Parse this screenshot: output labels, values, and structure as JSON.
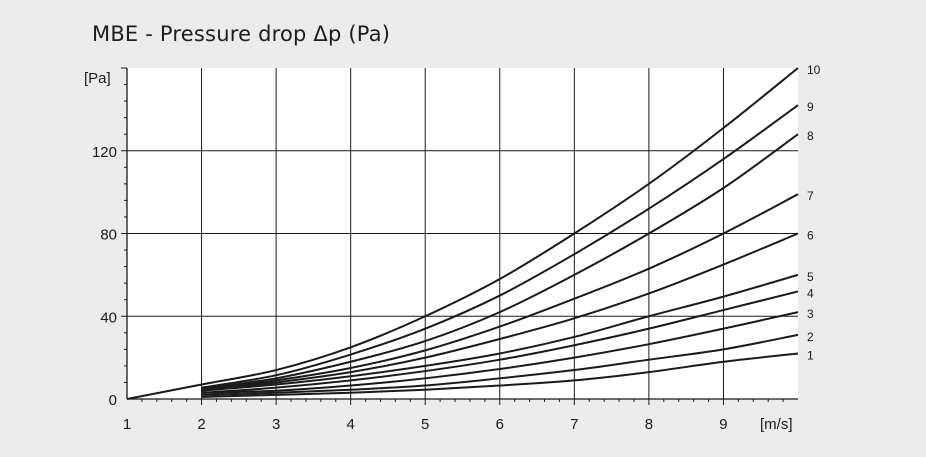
{
  "chart_data": {
    "type": "line",
    "title": "MBE - Pressure drop Δp (Pa)",
    "ylabel": "[Pa]",
    "xlabel": "[m/s]",
    "xlim": [
      1,
      10
    ],
    "ylim": [
      0,
      160
    ],
    "x_ticks": [
      "1",
      "2",
      "3",
      "4",
      "5",
      "6",
      "7",
      "8",
      "9"
    ],
    "y_ticks": [
      "0",
      "40",
      "80",
      "120"
    ],
    "y_tick_values": [
      0,
      40,
      80,
      120
    ],
    "x_tick_values": [
      1,
      2,
      3,
      4,
      5,
      6,
      7,
      8,
      9
    ],
    "grid": true,
    "series": [
      {
        "name": "1",
        "x": [
          2,
          3,
          4,
          5,
          6,
          7,
          8,
          9,
          10
        ],
        "y": [
          1,
          2,
          3,
          4.5,
          6.5,
          9,
          13,
          18,
          22
        ]
      },
      {
        "name": "2",
        "x": [
          2,
          3,
          4,
          5,
          6,
          7,
          8,
          9,
          10
        ],
        "y": [
          2,
          3,
          4.5,
          6.5,
          10,
          14,
          19,
          24,
          31
        ]
      },
      {
        "name": "3",
        "x": [
          2,
          3,
          4,
          5,
          6,
          7,
          8,
          9,
          10
        ],
        "y": [
          3,
          4,
          6.5,
          10,
          14.5,
          20,
          26.5,
          34,
          42
        ]
      },
      {
        "name": "4",
        "x": [
          2,
          3,
          4,
          5,
          6,
          7,
          8,
          9,
          10
        ],
        "y": [
          3,
          5.5,
          9,
          13.5,
          19,
          26,
          34,
          43,
          52
        ]
      },
      {
        "name": "5",
        "x": [
          2,
          3,
          4,
          5,
          6,
          7,
          8,
          9,
          10
        ],
        "y": [
          4,
          7,
          11,
          16,
          22,
          30,
          40,
          49.5,
          60
        ]
      },
      {
        "name": "6",
        "x": [
          2,
          3,
          4,
          5,
          6,
          7,
          8,
          9,
          10
        ],
        "y": [
          4,
          8,
          13,
          20,
          29,
          39,
          51,
          65,
          80
        ]
      },
      {
        "name": "7",
        "x": [
          2,
          3,
          4,
          5,
          6,
          7,
          8,
          9,
          10
        ],
        "y": [
          4.5,
          9,
          15,
          23.5,
          35,
          48.5,
          63,
          80,
          99
        ]
      },
      {
        "name": "8",
        "x": [
          2,
          3,
          4,
          5,
          6,
          7,
          8,
          9,
          10
        ],
        "y": [
          5,
          10,
          18,
          28,
          42,
          60,
          80,
          102,
          128
        ]
      },
      {
        "name": "9",
        "x": [
          2,
          3,
          4,
          5,
          6,
          7,
          8,
          9,
          10
        ],
        "y": [
          5.5,
          11.5,
          21.5,
          34,
          50,
          70,
          92,
          116,
          142
        ]
      },
      {
        "name": "10",
        "x": [
          1,
          2,
          3,
          4,
          5,
          6,
          7,
          8,
          9,
          10
        ],
        "y": [
          0,
          7,
          14,
          25,
          40,
          58,
          80,
          104,
          131,
          160
        ]
      }
    ]
  },
  "colors": {
    "background": "#ececec",
    "plot_background": "#ffffff",
    "line": "#1a1a1a",
    "grid": "#1a1a1a"
  }
}
